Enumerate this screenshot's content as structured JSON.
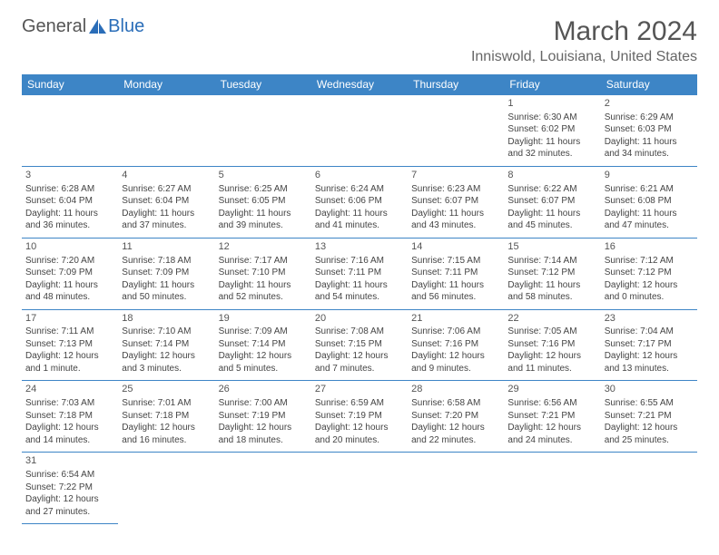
{
  "brand": {
    "word1": "General",
    "word2": "Blue"
  },
  "title": "March 2024",
  "location": "Inniswold, Louisiana, United States",
  "colors": {
    "header_bg": "#3d85c6",
    "header_fg": "#ffffff",
    "grid_border": "#3d85c6",
    "text": "#444444",
    "title_color": "#555555",
    "background": "#ffffff"
  },
  "typography": {
    "title_fontsize": 30,
    "location_fontsize": 16,
    "dayheader_fontsize": 12,
    "cell_fontsize": 10
  },
  "day_headers": [
    "Sunday",
    "Monday",
    "Tuesday",
    "Wednesday",
    "Thursday",
    "Friday",
    "Saturday"
  ],
  "weeks": [
    [
      null,
      null,
      null,
      null,
      null,
      {
        "n": "1",
        "sr": "Sunrise: 6:30 AM",
        "ss": "Sunset: 6:02 PM",
        "dl": "Daylight: 11 hours and 32 minutes."
      },
      {
        "n": "2",
        "sr": "Sunrise: 6:29 AM",
        "ss": "Sunset: 6:03 PM",
        "dl": "Daylight: 11 hours and 34 minutes."
      }
    ],
    [
      {
        "n": "3",
        "sr": "Sunrise: 6:28 AM",
        "ss": "Sunset: 6:04 PM",
        "dl": "Daylight: 11 hours and 36 minutes."
      },
      {
        "n": "4",
        "sr": "Sunrise: 6:27 AM",
        "ss": "Sunset: 6:04 PM",
        "dl": "Daylight: 11 hours and 37 minutes."
      },
      {
        "n": "5",
        "sr": "Sunrise: 6:25 AM",
        "ss": "Sunset: 6:05 PM",
        "dl": "Daylight: 11 hours and 39 minutes."
      },
      {
        "n": "6",
        "sr": "Sunrise: 6:24 AM",
        "ss": "Sunset: 6:06 PM",
        "dl": "Daylight: 11 hours and 41 minutes."
      },
      {
        "n": "7",
        "sr": "Sunrise: 6:23 AM",
        "ss": "Sunset: 6:07 PM",
        "dl": "Daylight: 11 hours and 43 minutes."
      },
      {
        "n": "8",
        "sr": "Sunrise: 6:22 AM",
        "ss": "Sunset: 6:07 PM",
        "dl": "Daylight: 11 hours and 45 minutes."
      },
      {
        "n": "9",
        "sr": "Sunrise: 6:21 AM",
        "ss": "Sunset: 6:08 PM",
        "dl": "Daylight: 11 hours and 47 minutes."
      }
    ],
    [
      {
        "n": "10",
        "sr": "Sunrise: 7:20 AM",
        "ss": "Sunset: 7:09 PM",
        "dl": "Daylight: 11 hours and 48 minutes."
      },
      {
        "n": "11",
        "sr": "Sunrise: 7:18 AM",
        "ss": "Sunset: 7:09 PM",
        "dl": "Daylight: 11 hours and 50 minutes."
      },
      {
        "n": "12",
        "sr": "Sunrise: 7:17 AM",
        "ss": "Sunset: 7:10 PM",
        "dl": "Daylight: 11 hours and 52 minutes."
      },
      {
        "n": "13",
        "sr": "Sunrise: 7:16 AM",
        "ss": "Sunset: 7:11 PM",
        "dl": "Daylight: 11 hours and 54 minutes."
      },
      {
        "n": "14",
        "sr": "Sunrise: 7:15 AM",
        "ss": "Sunset: 7:11 PM",
        "dl": "Daylight: 11 hours and 56 minutes."
      },
      {
        "n": "15",
        "sr": "Sunrise: 7:14 AM",
        "ss": "Sunset: 7:12 PM",
        "dl": "Daylight: 11 hours and 58 minutes."
      },
      {
        "n": "16",
        "sr": "Sunrise: 7:12 AM",
        "ss": "Sunset: 7:12 PM",
        "dl": "Daylight: 12 hours and 0 minutes."
      }
    ],
    [
      {
        "n": "17",
        "sr": "Sunrise: 7:11 AM",
        "ss": "Sunset: 7:13 PM",
        "dl": "Daylight: 12 hours and 1 minute."
      },
      {
        "n": "18",
        "sr": "Sunrise: 7:10 AM",
        "ss": "Sunset: 7:14 PM",
        "dl": "Daylight: 12 hours and 3 minutes."
      },
      {
        "n": "19",
        "sr": "Sunrise: 7:09 AM",
        "ss": "Sunset: 7:14 PM",
        "dl": "Daylight: 12 hours and 5 minutes."
      },
      {
        "n": "20",
        "sr": "Sunrise: 7:08 AM",
        "ss": "Sunset: 7:15 PM",
        "dl": "Daylight: 12 hours and 7 minutes."
      },
      {
        "n": "21",
        "sr": "Sunrise: 7:06 AM",
        "ss": "Sunset: 7:16 PM",
        "dl": "Daylight: 12 hours and 9 minutes."
      },
      {
        "n": "22",
        "sr": "Sunrise: 7:05 AM",
        "ss": "Sunset: 7:16 PM",
        "dl": "Daylight: 12 hours and 11 minutes."
      },
      {
        "n": "23",
        "sr": "Sunrise: 7:04 AM",
        "ss": "Sunset: 7:17 PM",
        "dl": "Daylight: 12 hours and 13 minutes."
      }
    ],
    [
      {
        "n": "24",
        "sr": "Sunrise: 7:03 AM",
        "ss": "Sunset: 7:18 PM",
        "dl": "Daylight: 12 hours and 14 minutes."
      },
      {
        "n": "25",
        "sr": "Sunrise: 7:01 AM",
        "ss": "Sunset: 7:18 PM",
        "dl": "Daylight: 12 hours and 16 minutes."
      },
      {
        "n": "26",
        "sr": "Sunrise: 7:00 AM",
        "ss": "Sunset: 7:19 PM",
        "dl": "Daylight: 12 hours and 18 minutes."
      },
      {
        "n": "27",
        "sr": "Sunrise: 6:59 AM",
        "ss": "Sunset: 7:19 PM",
        "dl": "Daylight: 12 hours and 20 minutes."
      },
      {
        "n": "28",
        "sr": "Sunrise: 6:58 AM",
        "ss": "Sunset: 7:20 PM",
        "dl": "Daylight: 12 hours and 22 minutes."
      },
      {
        "n": "29",
        "sr": "Sunrise: 6:56 AM",
        "ss": "Sunset: 7:21 PM",
        "dl": "Daylight: 12 hours and 24 minutes."
      },
      {
        "n": "30",
        "sr": "Sunrise: 6:55 AM",
        "ss": "Sunset: 7:21 PM",
        "dl": "Daylight: 12 hours and 25 minutes."
      }
    ],
    [
      {
        "n": "31",
        "sr": "Sunrise: 6:54 AM",
        "ss": "Sunset: 7:22 PM",
        "dl": "Daylight: 12 hours and 27 minutes."
      },
      null,
      null,
      null,
      null,
      null,
      null
    ]
  ]
}
